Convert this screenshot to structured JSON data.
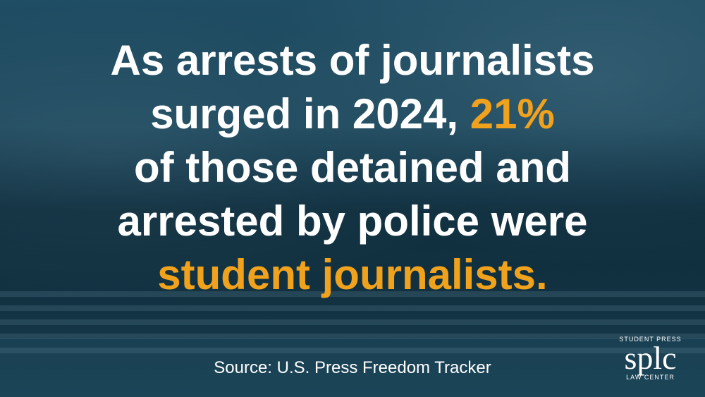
{
  "headline": {
    "lines": [
      {
        "parts": [
          "As arrests of journalists"
        ]
      },
      {
        "parts": [
          "surged in 2024, ",
          "21%"
        ]
      },
      {
        "parts": [
          "of those detained and"
        ]
      },
      {
        "parts": [
          "arrested by police were"
        ]
      },
      {
        "parts": [
          "student journalists."
        ]
      }
    ]
  },
  "source": "Source: U.S. Press Freedom Tracker",
  "logo": {
    "top": "STUDENT PRESS",
    "mark": "splc",
    "bottom": "LAW CENTER"
  }
}
